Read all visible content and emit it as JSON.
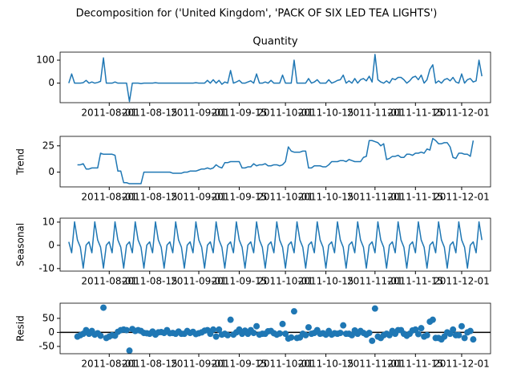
{
  "title": "Decomposition for ('United Kingdom', 'PACK OF SIX LED TEA LIGHTS')",
  "x": [
    "2011-07-18",
    "2011-07-19",
    "2011-07-20",
    "2011-07-21",
    "2011-07-22",
    "2011-07-23",
    "2011-07-24",
    "2011-07-25",
    "2011-07-26",
    "2011-07-27",
    "2011-07-28",
    "2011-07-29",
    "2011-07-30",
    "2011-07-31",
    "2011-08-01",
    "2011-08-02",
    "2011-08-03",
    "2011-08-04",
    "2011-08-05",
    "2011-08-06",
    "2011-08-07",
    "2011-08-08",
    "2011-08-09",
    "2011-08-10",
    "2011-08-11",
    "2011-08-12",
    "2011-08-13",
    "2011-08-14",
    "2011-08-15",
    "2011-08-16",
    "2011-08-17",
    "2011-08-18",
    "2011-08-19",
    "2011-08-20",
    "2011-08-21",
    "2011-08-22",
    "2011-08-23",
    "2011-08-24",
    "2011-08-25",
    "2011-08-26",
    "2011-08-27",
    "2011-08-28",
    "2011-08-29",
    "2011-08-30",
    "2011-08-31",
    "2011-09-01",
    "2011-09-02",
    "2011-09-03",
    "2011-09-04",
    "2011-09-05",
    "2011-09-06",
    "2011-09-07",
    "2011-09-08",
    "2011-09-09",
    "2011-09-10",
    "2011-09-11",
    "2011-09-12",
    "2011-09-13",
    "2011-09-14",
    "2011-09-15",
    "2011-09-16",
    "2011-09-17",
    "2011-09-18",
    "2011-09-19",
    "2011-09-20",
    "2011-09-21",
    "2011-09-22",
    "2011-09-23",
    "2011-09-24",
    "2011-09-25",
    "2011-09-26",
    "2011-09-27",
    "2011-09-28",
    "2011-09-29",
    "2011-09-30",
    "2011-10-01",
    "2011-10-02",
    "2011-10-03",
    "2011-10-04",
    "2011-10-05",
    "2011-10-06",
    "2011-10-07",
    "2011-10-08",
    "2011-10-09",
    "2011-10-10",
    "2011-10-11",
    "2011-10-12",
    "2011-10-13",
    "2011-10-14",
    "2011-10-15",
    "2011-10-16",
    "2011-10-17",
    "2011-10-18",
    "2011-10-19",
    "2011-10-20",
    "2011-10-21",
    "2011-10-22",
    "2011-10-23",
    "2011-10-24",
    "2011-10-25",
    "2011-10-26",
    "2011-10-27",
    "2011-10-28",
    "2011-10-29",
    "2011-10-30",
    "2011-10-31",
    "2011-11-01",
    "2011-11-02",
    "2011-11-03",
    "2011-11-04",
    "2011-11-05",
    "2011-11-06",
    "2011-11-07",
    "2011-11-08",
    "2011-11-09",
    "2011-11-10",
    "2011-11-11",
    "2011-11-12",
    "2011-11-13",
    "2011-11-14",
    "2011-11-15",
    "2011-11-16",
    "2011-11-17",
    "2011-11-18",
    "2011-11-19",
    "2011-11-20",
    "2011-11-21",
    "2011-11-22",
    "2011-11-23",
    "2011-11-24",
    "2011-11-25",
    "2011-11-26",
    "2011-11-27",
    "2011-11-28",
    "2011-11-29",
    "2011-11-30",
    "2011-12-01",
    "2011-12-02",
    "2011-12-03",
    "2011-12-04",
    "2011-12-05",
    "2011-12-06",
    "2011-12-07",
    "2011-12-08"
  ],
  "xlim": [
    "2011-07-15",
    "2011-12-11"
  ],
  "xticks": [
    "2011-08-01",
    "2011-08-15",
    "2011-09-01",
    "2011-09-15",
    "2011-10-01",
    "2011-10-15",
    "2011-11-01",
    "2011-11-15",
    "2011-12-01"
  ],
  "chart_data": [
    {
      "type": "line",
      "title": "Quantity",
      "color": "#1f77b4",
      "ylim": [
        -85,
        135
      ],
      "yticks": [
        0,
        100
      ],
      "values": [
        0,
        40,
        0,
        0,
        0,
        2,
        12,
        0,
        5,
        0,
        3,
        8,
        110,
        0,
        0,
        0,
        5,
        0,
        0,
        0,
        0,
        -80,
        0,
        0,
        0,
        -2,
        0,
        0,
        0,
        0,
        2,
        0,
        0,
        0,
        0,
        0,
        0,
        0,
        0,
        0,
        0,
        0,
        0,
        0,
        2,
        0,
        0,
        0,
        12,
        0,
        15,
        0,
        12,
        -5,
        5,
        0,
        55,
        0,
        5,
        12,
        0,
        0,
        5,
        10,
        0,
        40,
        0,
        0,
        5,
        0,
        12,
        0,
        0,
        0,
        35,
        0,
        0,
        0,
        100,
        0,
        0,
        0,
        0,
        20,
        0,
        5,
        15,
        0,
        0,
        0,
        15,
        0,
        5,
        12,
        15,
        35,
        0,
        10,
        0,
        20,
        0,
        15,
        20,
        10,
        30,
        5,
        125,
        15,
        5,
        0,
        10,
        0,
        20,
        15,
        25,
        25,
        15,
        0,
        10,
        25,
        30,
        15,
        35,
        0,
        15,
        60,
        80,
        0,
        10,
        0,
        15,
        20,
        10,
        25,
        5,
        0,
        40,
        0,
        15,
        20,
        5,
        10,
        100,
        30
      ]
    },
    {
      "type": "line",
      "ylabel": "Trend",
      "color": "#1f77b4",
      "ylim": [
        -14,
        34
      ],
      "yticks": [
        0,
        25
      ],
      "values": [
        null,
        null,
        null,
        7,
        7,
        8,
        3,
        3,
        4,
        4,
        4,
        18,
        17,
        17,
        17,
        17,
        16,
        1,
        1,
        -10,
        -10,
        -11,
        -11,
        -11,
        -11,
        -11,
        0,
        0,
        0,
        0,
        0,
        0,
        0,
        0,
        0,
        0,
        -1,
        -1,
        -1,
        -1,
        0,
        0,
        1,
        1,
        1,
        2,
        3,
        3,
        4,
        3,
        4,
        7,
        5,
        4,
        9,
        9,
        10,
        10,
        10,
        10,
        4,
        4,
        5,
        5,
        8,
        6,
        7,
        7,
        8,
        6,
        6,
        7,
        7,
        6,
        7,
        10,
        24,
        20,
        19,
        19,
        19,
        20,
        20,
        4,
        4,
        6,
        6,
        6,
        5,
        5,
        7,
        10,
        10,
        10,
        11,
        11,
        10,
        12,
        11,
        10,
        10,
        10,
        14,
        15,
        30,
        30,
        29,
        28,
        25,
        27,
        12,
        13,
        15,
        15,
        16,
        14,
        14,
        17,
        17,
        16,
        18,
        18,
        19,
        18,
        22,
        21,
        32,
        30,
        27,
        27,
        28,
        28,
        24,
        14,
        13,
        18,
        18,
        17,
        17,
        15,
        30,
        null,
        null,
        null
      ]
    },
    {
      "type": "line",
      "ylabel": "Seasonal",
      "color": "#1f77b4",
      "ylim": [
        -11.1,
        11.7
      ],
      "yticks": [
        -10,
        0,
        10
      ],
      "values": [
        1.5,
        -3.2,
        10.1,
        2.3,
        -0.8,
        -9.8,
        0.1,
        1.5,
        -3.2,
        10.1,
        2.3,
        -0.8,
        -9.8,
        0.1,
        1.5,
        -3.2,
        10.1,
        2.3,
        -0.8,
        -9.8,
        0.1,
        1.5,
        -3.2,
        10.1,
        2.3,
        -0.8,
        -9.8,
        0.1,
        1.5,
        -3.2,
        10.1,
        2.3,
        -0.8,
        -9.8,
        0.1,
        1.5,
        -3.2,
        10.1,
        2.3,
        -0.8,
        -9.8,
        0.1,
        1.5,
        -3.2,
        10.1,
        2.3,
        -0.8,
        -9.8,
        0.1,
        1.5,
        -3.2,
        10.1,
        2.3,
        -0.8,
        -9.8,
        0.1,
        1.5,
        -3.2,
        10.1,
        2.3,
        -0.8,
        -9.8,
        0.1,
        1.5,
        -3.2,
        10.1,
        2.3,
        -0.8,
        -9.8,
        0.1,
        1.5,
        -3.2,
        10.1,
        2.3,
        -0.8,
        -9.8,
        0.1,
        1.5,
        -3.2,
        10.1,
        2.3,
        -0.8,
        -9.8,
        0.1,
        1.5,
        -3.2,
        10.1,
        2.3,
        -0.8,
        -9.8,
        0.1,
        1.5,
        -3.2,
        10.1,
        2.3,
        -0.8,
        -9.8,
        0.1,
        1.5,
        -3.2,
        10.1,
        2.3,
        -0.8,
        -9.8,
        0.1,
        1.5,
        -3.2,
        10.1,
        2.3,
        -0.8,
        -9.8,
        0.1,
        1.5,
        -3.2,
        10.1,
        2.3,
        -0.8,
        -9.8,
        0.1,
        1.5,
        -3.2,
        10.1,
        2.3,
        -0.8,
        -9.8,
        0.1,
        1.5,
        -3.2,
        10.1,
        2.3,
        -0.8,
        -9.8,
        0.1,
        1.5,
        -3.2,
        10.1,
        2.3,
        -0.8,
        -9.8,
        0.1,
        1.5,
        -3.2,
        10.1,
        2.3
      ]
    },
    {
      "type": "scatter",
      "ylabel": "Resid",
      "color": "#1f77b4",
      "ylim": [
        -76,
        104
      ],
      "yticks": [
        -50,
        0,
        50
      ],
      "hline": 0,
      "values": [
        null,
        null,
        null,
        -15,
        -10,
        -5,
        8,
        -5,
        5,
        -8,
        -3,
        -12,
        88,
        -20,
        -15,
        -10,
        -12,
        2,
        8,
        10,
        8,
        -65,
        12,
        5,
        8,
        5,
        -2,
        -3,
        -5,
        3,
        -8,
        0,
        1,
        -2,
        8,
        -3,
        -2,
        -5,
        3,
        -5,
        -5,
        5,
        -2,
        2,
        -6,
        -3,
        0,
        6,
        8,
        -5,
        10,
        -15,
        10,
        -8,
        -5,
        -10,
        45,
        -8,
        0,
        10,
        -5,
        6,
        -5,
        8,
        -2,
        22,
        -8,
        -5,
        -5,
        4,
        5,
        -3,
        -8,
        -4,
        30,
        -5,
        -22,
        -18,
        75,
        -20,
        -18,
        -5,
        -10,
        18,
        -5,
        -2,
        8,
        -5,
        -3,
        -8,
        5,
        -8,
        -3,
        -5,
        -2,
        25,
        -5,
        -5,
        -10,
        7,
        -5,
        5,
        -2,
        -8,
        -2,
        -30,
        85,
        -15,
        -20,
        -10,
        -5,
        -10,
        5,
        -5,
        8,
        8,
        -5,
        -12,
        -5,
        7,
        10,
        -6,
        15,
        -15,
        -10,
        38,
        45,
        -20,
        -20,
        -25,
        -15,
        0,
        -5,
        10,
        -10,
        -10,
        22,
        -20,
        0,
        5,
        -25,
        null,
        null,
        null
      ]
    }
  ]
}
